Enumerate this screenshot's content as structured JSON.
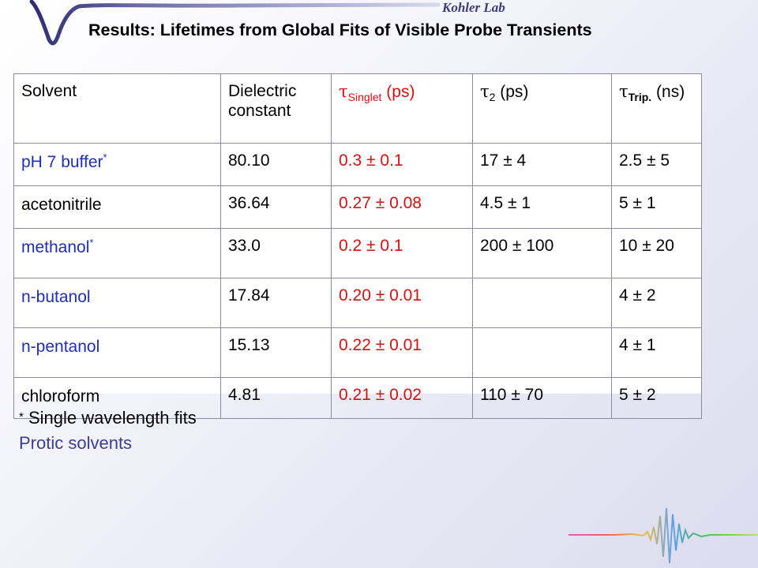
{
  "header": {
    "lab_name": "Kohler Lab",
    "title": "Results: Lifetimes from Global Fits of Visible Probe Transients"
  },
  "table": {
    "headers": {
      "solvent": "Solvent",
      "dielectric": "Dielectric constant",
      "tau_symbol": "τ",
      "singlet_sub": "Singlet",
      "singlet_unit": " (ps)",
      "tau2_sub": "2",
      "tau2_unit": " (ps)",
      "trip_sub": "Trip.",
      "trip_unit": " (ns)"
    },
    "rows": [
      {
        "solvent": "pH 7 buffer",
        "asterisk": "*",
        "dielectric": "80.10",
        "singlet": "0.3 ± 0.1",
        "tau2": "17 ± 4",
        "triplet": "2.5 ± 5",
        "protic": true
      },
      {
        "solvent": "acetonitrile",
        "asterisk": "",
        "dielectric": "36.64",
        "singlet": "0.27 ± 0.08",
        "tau2": "4.5 ± 1",
        "triplet": "5 ± 1",
        "protic": false
      },
      {
        "solvent": "methanol",
        "asterisk": "*",
        "dielectric": "33.0",
        "singlet": "0.2 ± 0.1",
        "tau2": "200 ± 100",
        "triplet": "10 ± 20",
        "protic": true
      },
      {
        "solvent": "n-butanol",
        "asterisk": "",
        "dielectric": "17.84",
        "singlet": "0.20 ± 0.01",
        "tau2": "",
        "triplet": "4 ± 2",
        "protic": true
      },
      {
        "solvent": "n-pentanol",
        "asterisk": "",
        "dielectric": "15.13",
        "singlet": "0.22 ± 0.01",
        "tau2": "",
        "triplet": "4 ± 1",
        "protic": true
      },
      {
        "solvent": "chloroform",
        "asterisk": "",
        "dielectric": "4.81",
        "singlet": "0.21 ± 0.02",
        "tau2": "110 ± 70",
        "triplet": "5 ± 2",
        "protic": false
      }
    ]
  },
  "footnotes": {
    "star": "*",
    "single_wavelength": " Single wavelength fits",
    "protic": "Protic solvents"
  },
  "colors": {
    "protic": "#1f2fb4",
    "singlet": "#d91010",
    "lab": "#3c3c7a"
  }
}
